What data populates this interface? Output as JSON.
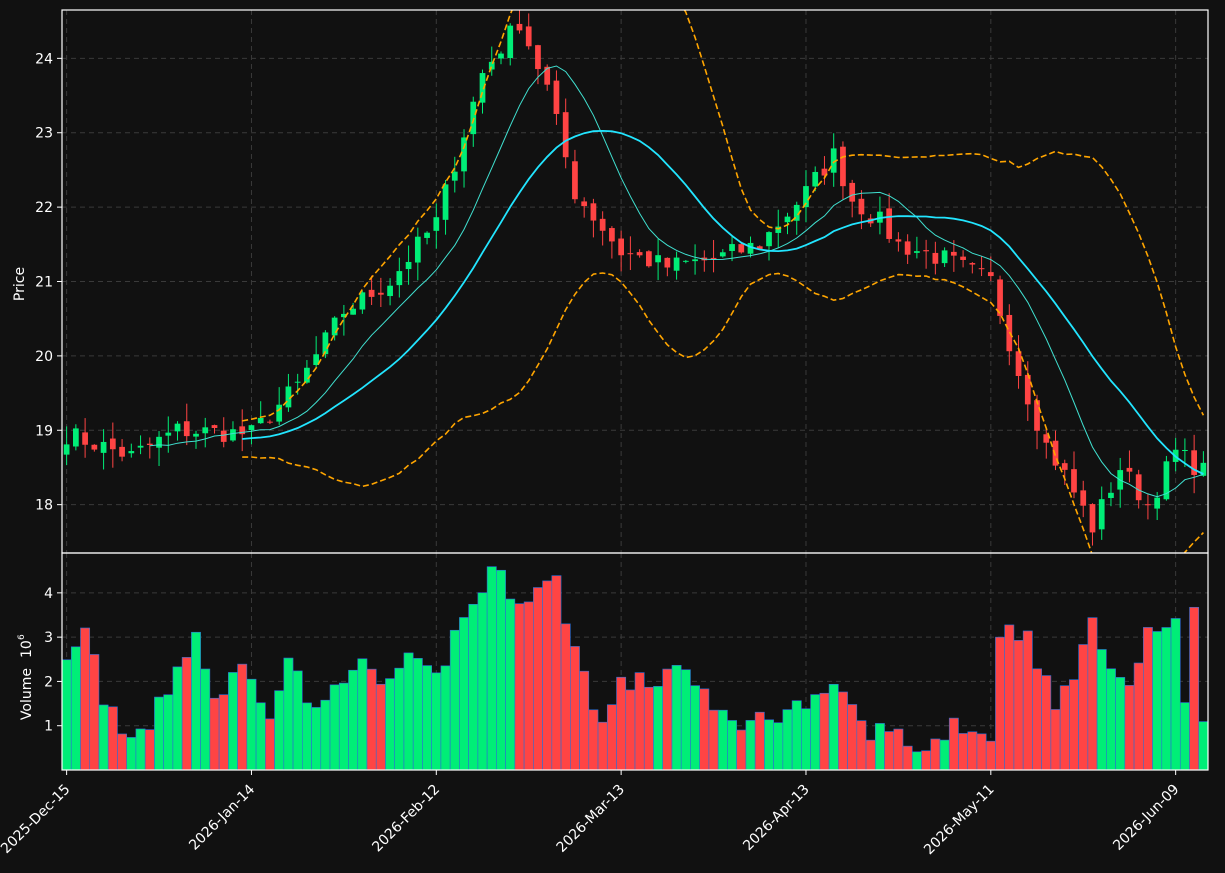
{
  "chart_data": {
    "type": "candlestick",
    "price_panel": {
      "ylabel": "Price",
      "ylim": [
        17.35,
        24.65
      ],
      "yticks": [
        18,
        19,
        20,
        21,
        22,
        23,
        24
      ],
      "grid": true
    },
    "volume_panel": {
      "ylabel": "Volume",
      "ylabel_exponent": "6",
      "ylim": [
        0,
        4.9
      ],
      "yticks": [
        1,
        2,
        3,
        4
      ],
      "grid": true
    },
    "xtick_labels": [
      "2025-Dec-15",
      "2026-Jan-14",
      "2026-Feb-12",
      "2026-Mar-13",
      "2026-Apr-13",
      "2026-May-11",
      "2026-Jun-09"
    ],
    "xtick_index": [
      0,
      20,
      40,
      60,
      80,
      100,
      120
    ],
    "n_bars": 124,
    "colors": {
      "up": "#00ee77",
      "down": "#ff4444",
      "ma_fast": "#40e0d0",
      "ma_slow": "#22e5ff",
      "bands": "#ffa500"
    },
    "key_points": [
      [
        0,
        18.95
      ],
      [
        7,
        18.65
      ],
      [
        12,
        19.0
      ],
      [
        20,
        18.95
      ],
      [
        25,
        19.6
      ],
      [
        30,
        20.6
      ],
      [
        35,
        21.0
      ],
      [
        40,
        21.8
      ],
      [
        45,
        23.8
      ],
      [
        49,
        24.5
      ],
      [
        52,
        23.6
      ],
      [
        55,
        22.2
      ],
      [
        60,
        21.4
      ],
      [
        65,
        21.2
      ],
      [
        70,
        21.3
      ],
      [
        75,
        21.5
      ],
      [
        80,
        22.2
      ],
      [
        83,
        22.7
      ],
      [
        85,
        22.1
      ],
      [
        88,
        21.8
      ],
      [
        90,
        21.5
      ],
      [
        95,
        21.3
      ],
      [
        100,
        21.0
      ],
      [
        103,
        19.8
      ],
      [
        106,
        18.8
      ],
      [
        108,
        18.4
      ],
      [
        111,
        17.7
      ],
      [
        114,
        18.5
      ],
      [
        117,
        18.0
      ],
      [
        120,
        18.7
      ],
      [
        123,
        18.45
      ]
    ],
    "volume_key_points": [
      [
        0,
        2.4
      ],
      [
        2,
        3.1
      ],
      [
        4,
        1.7
      ],
      [
        6,
        0.7
      ],
      [
        9,
        0.95
      ],
      [
        12,
        2.3
      ],
      [
        14,
        3.1
      ],
      [
        16,
        1.6
      ],
      [
        19,
        2.3
      ],
      [
        22,
        1.4
      ],
      [
        24,
        2.55
      ],
      [
        27,
        1.2
      ],
      [
        31,
        2.5
      ],
      [
        34,
        1.9
      ],
      [
        37,
        2.4
      ],
      [
        40,
        2.05
      ],
      [
        42,
        3.05
      ],
      [
        46,
        4.5
      ],
      [
        49,
        3.9
      ],
      [
        53,
        4.25
      ],
      [
        55,
        2.75
      ],
      [
        58,
        1.0
      ],
      [
        60,
        1.95
      ],
      [
        64,
        2.0
      ],
      [
        66,
        2.5
      ],
      [
        70,
        1.3
      ],
      [
        74,
        1.05
      ],
      [
        78,
        1.4
      ],
      [
        82,
        1.55
      ],
      [
        84,
        1.85
      ],
      [
        86,
        0.95
      ],
      [
        90,
        0.8
      ],
      [
        93,
        0.4
      ],
      [
        96,
        1.1
      ],
      [
        100,
        0.75
      ],
      [
        101,
        3.15
      ],
      [
        104,
        3.1
      ],
      [
        107,
        1.35
      ],
      [
        111,
        3.2
      ],
      [
        115,
        1.85
      ],
      [
        117,
        3.05
      ],
      [
        120,
        3.4
      ],
      [
        121,
        1.3
      ],
      [
        122,
        3.6
      ],
      [
        123,
        1.2
      ]
    ]
  }
}
